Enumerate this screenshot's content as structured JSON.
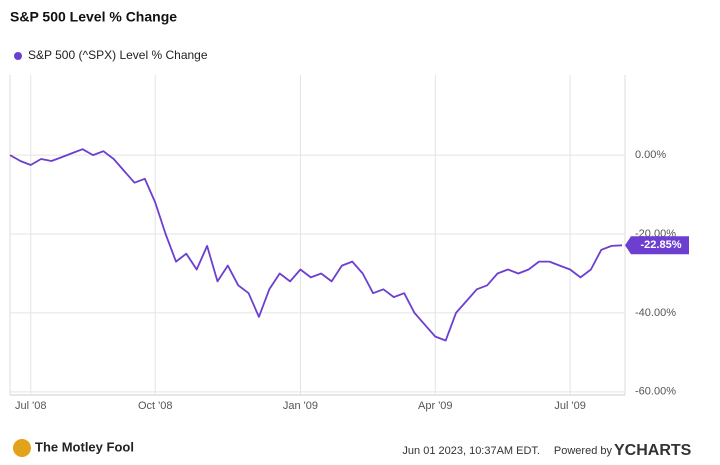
{
  "chart_data": {
    "type": "line",
    "title": "S&P 500 Level % Change",
    "categories": [
      null,
      null,
      "Jul '08",
      null,
      null,
      null,
      null,
      null,
      null,
      null,
      null,
      null,
      null,
      null,
      "Oct '08",
      null,
      null,
      null,
      null,
      null,
      null,
      null,
      null,
      null,
      null,
      null,
      null,
      null,
      "Jan '09",
      null,
      null,
      null,
      null,
      null,
      null,
      null,
      null,
      null,
      null,
      null,
      null,
      "Apr '09",
      null,
      null,
      null,
      null,
      null,
      null,
      null,
      null,
      null,
      null,
      null,
      null,
      "Jul '09",
      null,
      null,
      null,
      null,
      null
    ],
    "series": [
      {
        "name": "S&P 500 (^SPX) Level % Change",
        "color": "#6c3fd1",
        "values": [
          0,
          -1.5,
          -2.5,
          -1,
          -1.5,
          -0.5,
          0.5,
          1.5,
          0,
          1,
          -1,
          -4,
          -7,
          -6,
          -12,
          -20,
          -27,
          -25,
          -29,
          -23,
          -32,
          -28,
          -33,
          -35,
          -41,
          -34,
          -30,
          -32,
          -29,
          -31,
          -30,
          -32,
          -28,
          -27,
          -30,
          -35,
          -34,
          -36,
          -35,
          -40,
          -43,
          -46,
          -47,
          -40,
          -37,
          -34,
          -33,
          -30,
          -29,
          -30,
          -29,
          -27,
          -27,
          -28,
          -29,
          -31,
          -29,
          -24,
          -23,
          -22.85
        ],
        "value_labels": [
          null,
          null,
          null,
          null,
          null,
          null,
          null,
          null,
          null,
          null,
          null,
          null,
          null,
          null,
          null,
          null,
          null,
          null,
          null,
          null,
          null,
          null,
          null,
          null,
          null,
          null,
          null,
          null,
          null,
          null,
          null,
          null,
          null,
          null,
          null,
          null,
          null,
          null,
          null,
          null,
          null,
          null,
          null,
          null,
          null,
          null,
          null,
          null,
          null,
          null,
          null,
          null,
          null,
          null,
          null,
          null,
          null,
          null,
          null,
          "-22.85%"
        ]
      }
    ],
    "ylim": [
      -60.8,
      20.3
    ],
    "yticks": [
      {
        "value": 0,
        "label": "0.00%"
      },
      {
        "value": -20,
        "label": "-20.00%"
      },
      {
        "value": -40,
        "label": "-40.00%"
      },
      {
        "value": -60,
        "label": "-60.00%"
      }
    ],
    "grid": true,
    "source_note": "Jun 01 2023, 10:37AM EDT.",
    "powered_by": "Powered by",
    "brand": "YCHARTS",
    "logo_text": "The Motley Fool"
  }
}
